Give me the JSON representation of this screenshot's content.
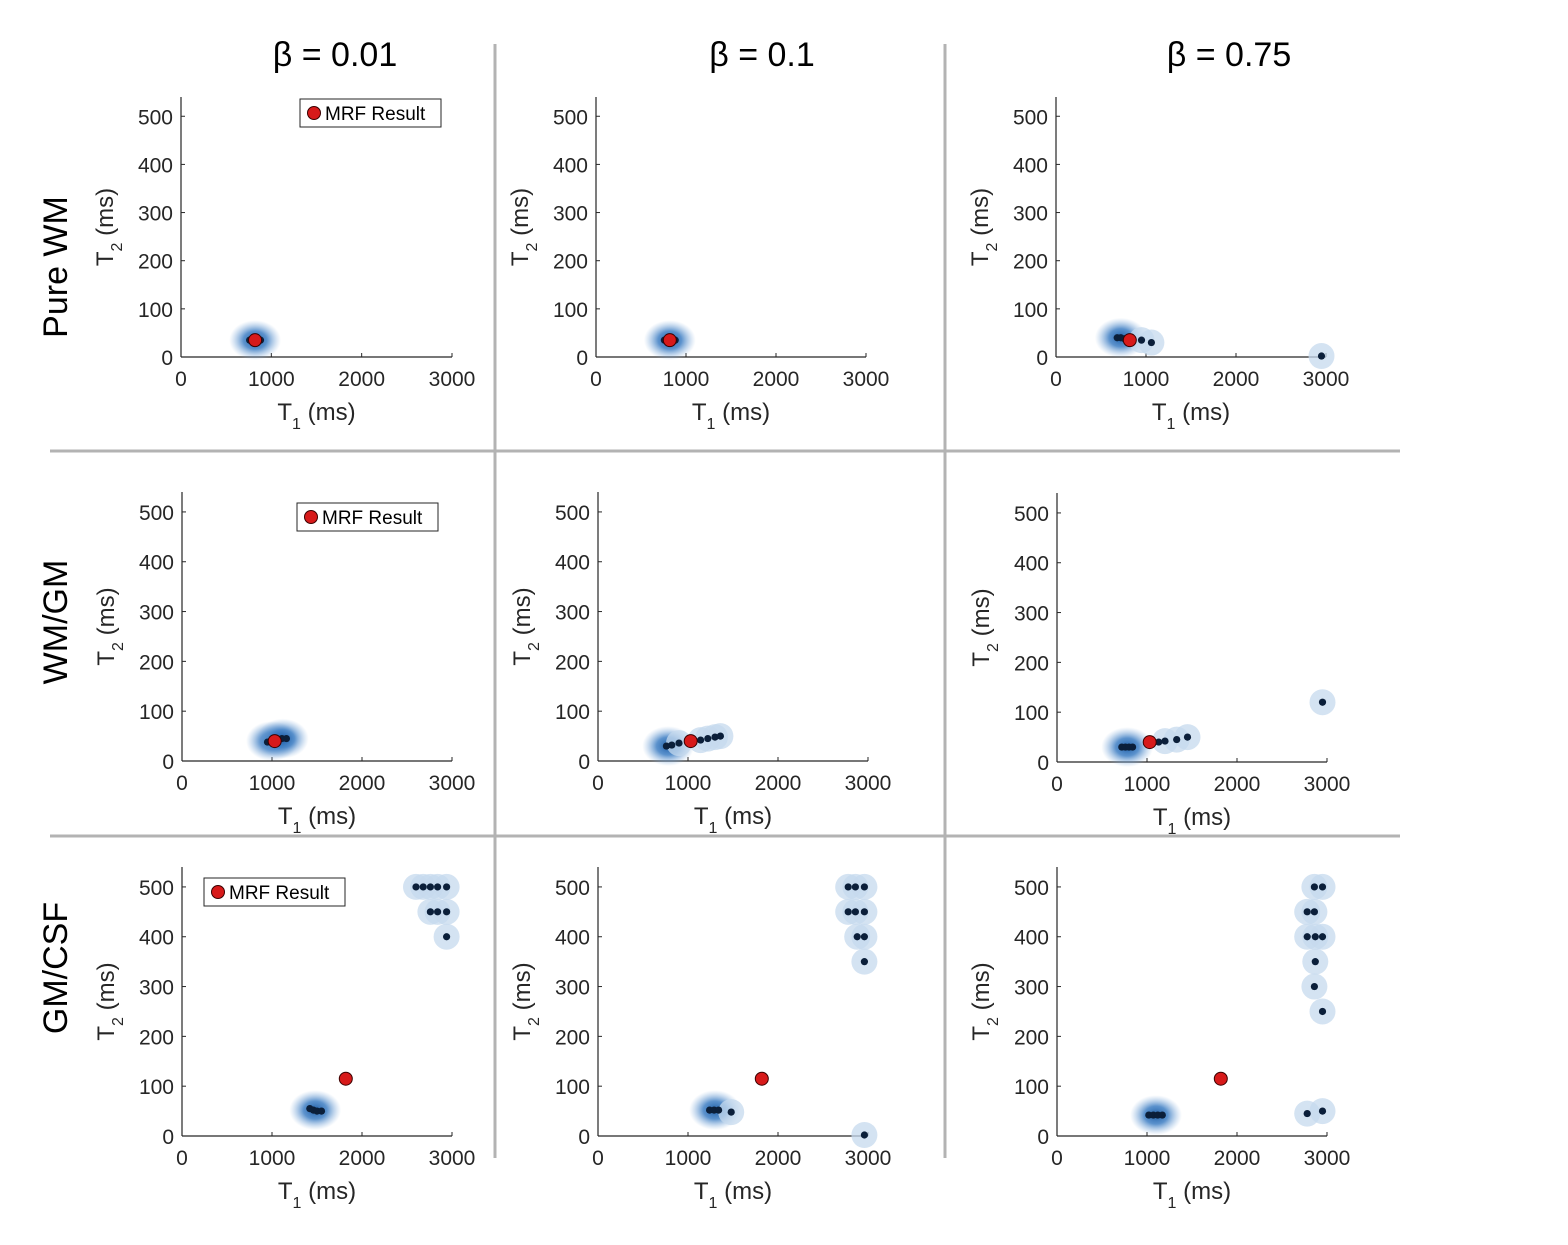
{
  "figure": {
    "column_titles": [
      "β = 0.01",
      "β = 0.1",
      "β = 0.75"
    ],
    "row_titles": [
      "Pure WM",
      "WM/GM",
      "GM/CSF"
    ],
    "legend_label": "MRF Result",
    "colors": {
      "result_fill": "#d71a1a",
      "result_edge": "#3a0000",
      "point": "#0b1f3a",
      "cloud": "#3f7fc4",
      "divider": "#b3b3b3",
      "axis": "#262626"
    }
  },
  "chart_data": [
    {
      "type": "scatter",
      "row": "Pure WM",
      "column": "β = 0.01",
      "xlabel": "T1 (ms)",
      "ylabel": "T2 (ms)",
      "xlim": [
        0,
        3000
      ],
      "ylim": [
        0,
        540
      ],
      "xticks": [
        0,
        1000,
        2000,
        3000
      ],
      "yticks": [
        0,
        100,
        200,
        300,
        400,
        500
      ],
      "legend": true,
      "mrf_result": {
        "x": 820,
        "y": 35
      },
      "points": [
        [
          760,
          35
        ],
        [
          790,
          35
        ],
        [
          820,
          35
        ],
        [
          850,
          35
        ],
        [
          880,
          35
        ]
      ],
      "dense_regions": [
        [
          820,
          35
        ]
      ],
      "halos": []
    },
    {
      "type": "scatter",
      "row": "Pure WM",
      "column": "β = 0.1",
      "xlabel": "T1 (ms)",
      "ylabel": "T2 (ms)",
      "xlim": [
        0,
        3000
      ],
      "ylim": [
        0,
        540
      ],
      "xticks": [
        0,
        1000,
        2000,
        3000
      ],
      "yticks": [
        0,
        100,
        200,
        300,
        400,
        500
      ],
      "legend": false,
      "mrf_result": {
        "x": 820,
        "y": 35
      },
      "points": [
        [
          760,
          35
        ],
        [
          790,
          35
        ],
        [
          820,
          35
        ],
        [
          850,
          35
        ],
        [
          880,
          35
        ]
      ],
      "dense_regions": [
        [
          820,
          35
        ]
      ],
      "halos": []
    },
    {
      "type": "scatter",
      "row": "Pure WM",
      "column": "β = 0.75",
      "xlabel": "T1 (ms)",
      "ylabel": "T2 (ms)",
      "xlim": [
        0,
        3000
      ],
      "ylim": [
        0,
        540
      ],
      "xticks": [
        0,
        1000,
        2000,
        3000
      ],
      "yticks": [
        0,
        100,
        200,
        300,
        400,
        500
      ],
      "legend": false,
      "mrf_result": {
        "x": 820,
        "y": 35
      },
      "points": [
        [
          680,
          40
        ],
        [
          720,
          40
        ],
        [
          760,
          38
        ],
        [
          950,
          35
        ],
        [
          1060,
          30
        ],
        [
          2950,
          2
        ]
      ],
      "dense_regions": [
        [
          720,
          40
        ]
      ],
      "halos": [
        [
          950,
          35
        ],
        [
          1060,
          30
        ],
        [
          2950,
          2
        ]
      ]
    },
    {
      "type": "scatter",
      "row": "WM/GM",
      "column": "β = 0.01",
      "xlabel": "T1 (ms)",
      "ylabel": "T2 (ms)",
      "xlim": [
        0,
        3000
      ],
      "ylim": [
        0,
        540
      ],
      "xticks": [
        0,
        1000,
        2000,
        3000
      ],
      "yticks": [
        0,
        100,
        200,
        300,
        400,
        500
      ],
      "legend": true,
      "mrf_result": {
        "x": 1030,
        "y": 40
      },
      "points": [
        [
          950,
          38
        ],
        [
          1000,
          40
        ],
        [
          1060,
          42
        ],
        [
          1110,
          45
        ],
        [
          1160,
          45
        ]
      ],
      "dense_regions": [
        [
          1000,
          40
        ],
        [
          1120,
          45
        ]
      ],
      "halos": []
    },
    {
      "type": "scatter",
      "row": "WM/GM",
      "column": "β = 0.1",
      "xlabel": "T1 (ms)",
      "ylabel": "T2 (ms)",
      "xlim": [
        0,
        3000
      ],
      "ylim": [
        0,
        540
      ],
      "xticks": [
        0,
        1000,
        2000,
        3000
      ],
      "yticks": [
        0,
        100,
        200,
        300,
        400,
        500
      ],
      "legend": false,
      "mrf_result": {
        "x": 1030,
        "y": 40
      },
      "points": [
        [
          760,
          30
        ],
        [
          820,
          32
        ],
        [
          900,
          36
        ],
        [
          1140,
          42
        ],
        [
          1220,
          45
        ],
        [
          1300,
          48
        ],
        [
          1360,
          50
        ]
      ],
      "dense_regions": [
        [
          780,
          30
        ]
      ],
      "halos": [
        [
          900,
          36
        ],
        [
          1140,
          42
        ],
        [
          1220,
          45
        ],
        [
          1300,
          48
        ],
        [
          1360,
          50
        ]
      ]
    },
    {
      "type": "scatter",
      "row": "WM/GM",
      "column": "β = 0.75",
      "xlabel": "T1 (ms)",
      "ylabel": "T2 (ms)",
      "xlim": [
        0,
        3000
      ],
      "ylim": [
        0,
        540
      ],
      "xticks": [
        0,
        1000,
        2000,
        3000
      ],
      "yticks": [
        0,
        100,
        200,
        300,
        400,
        500
      ],
      "legend": false,
      "mrf_result": {
        "x": 1030,
        "y": 40
      },
      "points": [
        [
          720,
          30
        ],
        [
          760,
          30
        ],
        [
          800,
          30
        ],
        [
          840,
          30
        ],
        [
          1130,
          40
        ],
        [
          1200,
          42
        ],
        [
          1330,
          45
        ],
        [
          1450,
          50
        ],
        [
          2950,
          120
        ]
      ],
      "dense_regions": [
        [
          780,
          30
        ]
      ],
      "halos": [
        [
          1200,
          42
        ],
        [
          1330,
          45
        ],
        [
          1450,
          50
        ],
        [
          2950,
          120
        ]
      ]
    },
    {
      "type": "scatter",
      "row": "GM/CSF",
      "column": "β = 0.01",
      "xlabel": "T1 (ms)",
      "ylabel": "T2 (ms)",
      "xlim": [
        0,
        3000
      ],
      "ylim": [
        0,
        540
      ],
      "xticks": [
        0,
        1000,
        2000,
        3000
      ],
      "yticks": [
        0,
        100,
        200,
        300,
        400,
        500
      ],
      "legend": true,
      "mrf_result": {
        "x": 1820,
        "y": 115
      },
      "points": [
        [
          1420,
          55
        ],
        [
          1460,
          52
        ],
        [
          1500,
          50
        ],
        [
          1550,
          50
        ],
        [
          2600,
          500
        ],
        [
          2680,
          500
        ],
        [
          2760,
          500
        ],
        [
          2840,
          500
        ],
        [
          2940,
          500
        ],
        [
          2760,
          450
        ],
        [
          2840,
          450
        ],
        [
          2940,
          450
        ],
        [
          2940,
          400
        ]
      ],
      "dense_regions": [
        [
          1480,
          52
        ]
      ],
      "halos": [
        [
          2600,
          500
        ],
        [
          2680,
          500
        ],
        [
          2760,
          500
        ],
        [
          2840,
          500
        ],
        [
          2940,
          500
        ],
        [
          2760,
          450
        ],
        [
          2840,
          450
        ],
        [
          2940,
          450
        ],
        [
          2940,
          400
        ]
      ]
    },
    {
      "type": "scatter",
      "row": "GM/CSF",
      "column": "β = 0.1",
      "xlabel": "T1 (ms)",
      "ylabel": "T2 (ms)",
      "xlim": [
        0,
        3000
      ],
      "ylim": [
        0,
        540
      ],
      "xticks": [
        0,
        1000,
        2000,
        3000
      ],
      "yticks": [
        0,
        100,
        200,
        300,
        400,
        500
      ],
      "legend": false,
      "mrf_result": {
        "x": 1820,
        "y": 115
      },
      "points": [
        [
          1240,
          52
        ],
        [
          1290,
          52
        ],
        [
          1340,
          52
        ],
        [
          1480,
          48
        ],
        [
          2780,
          500
        ],
        [
          2860,
          500
        ],
        [
          2960,
          500
        ],
        [
          2780,
          450
        ],
        [
          2860,
          450
        ],
        [
          2960,
          450
        ],
        [
          2880,
          400
        ],
        [
          2960,
          400
        ],
        [
          2960,
          350
        ],
        [
          2960,
          2
        ]
      ],
      "dense_regions": [
        [
          1300,
          52
        ]
      ],
      "halos": [
        [
          1480,
          48
        ],
        [
          2780,
          500
        ],
        [
          2860,
          500
        ],
        [
          2960,
          500
        ],
        [
          2780,
          450
        ],
        [
          2860,
          450
        ],
        [
          2960,
          450
        ],
        [
          2880,
          400
        ],
        [
          2960,
          400
        ],
        [
          2960,
          350
        ],
        [
          2960,
          2
        ]
      ]
    },
    {
      "type": "scatter",
      "row": "GM/CSF",
      "column": "β = 0.75",
      "xlabel": "T1 (ms)",
      "ylabel": "T2 (ms)",
      "xlim": [
        0,
        3000
      ],
      "ylim": [
        0,
        540
      ],
      "xticks": [
        0,
        1000,
        2000,
        3000
      ],
      "yticks": [
        0,
        100,
        200,
        300,
        400,
        500
      ],
      "legend": false,
      "mrf_result": {
        "x": 1820,
        "y": 115
      },
      "points": [
        [
          1020,
          42
        ],
        [
          1070,
          42
        ],
        [
          1120,
          42
        ],
        [
          1170,
          42
        ],
        [
          2860,
          500
        ],
        [
          2950,
          500
        ],
        [
          2780,
          450
        ],
        [
          2860,
          450
        ],
        [
          2780,
          400
        ],
        [
          2870,
          400
        ],
        [
          2950,
          400
        ],
        [
          2870,
          350
        ],
        [
          2860,
          300
        ],
        [
          2950,
          250
        ],
        [
          2780,
          45
        ],
        [
          2950,
          50
        ]
      ],
      "dense_regions": [
        [
          1100,
          42
        ]
      ],
      "halos": [
        [
          2860,
          500
        ],
        [
          2950,
          500
        ],
        [
          2780,
          450
        ],
        [
          2860,
          450
        ],
        [
          2780,
          400
        ],
        [
          2870,
          400
        ],
        [
          2950,
          400
        ],
        [
          2870,
          350
        ],
        [
          2860,
          300
        ],
        [
          2950,
          250
        ],
        [
          2780,
          45
        ],
        [
          2950,
          50
        ]
      ]
    }
  ]
}
